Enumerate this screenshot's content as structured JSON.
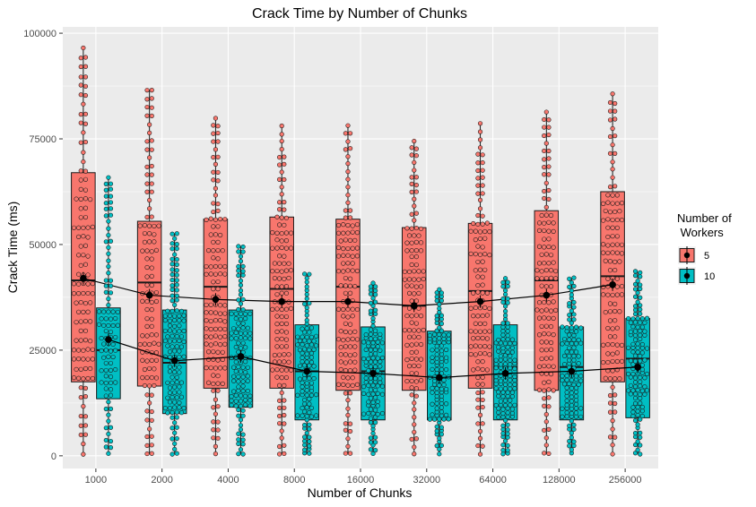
{
  "chart_data": {
    "type": "box",
    "title": "Crack Time by Number of Chunks",
    "xlabel": "Number of Chunks",
    "ylabel": "Crack Time (ms)",
    "categories": [
      "1000",
      "2000",
      "4000",
      "8000",
      "16000",
      "32000",
      "64000",
      "128000",
      "256000"
    ],
    "y_ticks": [
      "0",
      "25000",
      "50000",
      "75000",
      "100000"
    ],
    "ylim": [
      -3000,
      101500
    ],
    "grid": true,
    "legend": {
      "title_lines": [
        "Number of",
        " Workers"
      ],
      "position": "right"
    },
    "series": [
      {
        "name": "5",
        "color": "#F8766D",
        "q1": [
          17500,
          16500,
          16000,
          16000,
          15500,
          15500,
          16000,
          15500,
          17500
        ],
        "median": [
          41500,
          41000,
          40000,
          39500,
          40000,
          35500,
          39000,
          41500,
          42500
        ],
        "q3": [
          67000,
          55500,
          56000,
          56500,
          56000,
          54000,
          55000,
          58000,
          62500
        ],
        "whisker_low": [
          500,
          500,
          500,
          500,
          500,
          500,
          500,
          500,
          500
        ],
        "whisker_high": [
          96500,
          86500,
          80000,
          78000,
          78000,
          74500,
          78500,
          81500,
          85500
        ],
        "mean": [
          42000,
          38000,
          37000,
          36500,
          36500,
          35500,
          36500,
          38000,
          40500
        ]
      },
      {
        "name": "10",
        "color": "#00BFC4",
        "q1": [
          13500,
          10000,
          11500,
          8500,
          8500,
          8500,
          8500,
          8500,
          9000
        ],
        "median": [
          25000,
          22000,
          23000,
          20000,
          20000,
          18500,
          21000,
          21000,
          23000
        ],
        "q3": [
          35000,
          34500,
          34500,
          31000,
          30500,
          29500,
          31000,
          30500,
          32500
        ],
        "whisker_low": [
          500,
          500,
          500,
          500,
          500,
          500,
          500,
          500,
          500
        ],
        "whisker_high": [
          66000,
          52500,
          49500,
          43000,
          41000,
          39500,
          42000,
          42000,
          43500
        ],
        "mean": [
          27500,
          22500,
          23500,
          20000,
          19500,
          18500,
          19500,
          20000,
          21000
        ]
      }
    ]
  }
}
